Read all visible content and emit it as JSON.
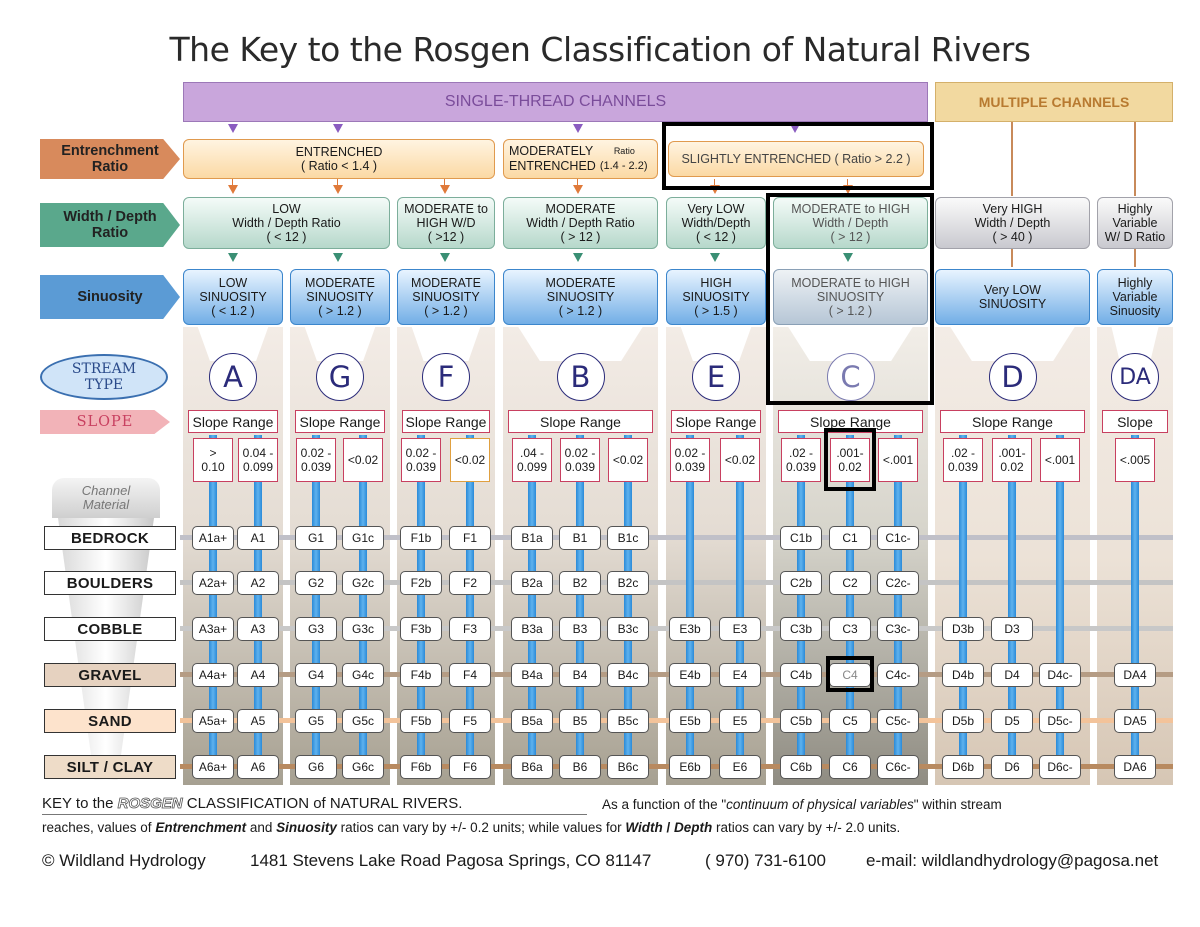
{
  "title": "The Key to the Rosgen Classification of Natural Rivers",
  "headers": {
    "single": "SINGLE-THREAD  CHANNELS",
    "multiple": "MULTIPLE  CHANNELS"
  },
  "row_labels": {
    "entrenchment": "Entrenchment\nRatio",
    "width_depth": "Width / Depth\nRatio",
    "sinuosity": "Sinuosity",
    "stream_type": "STREAM\nTYPE",
    "slope": "SLOPE",
    "channel_material": "Channel\nMaterial"
  },
  "entrenchment": {
    "entrenched": "ENTRENCHED\n( Ratio  < 1.4 )",
    "moderately": "MODERATELY\nENTRENCHED",
    "moderately_ratio_label": "Ratio",
    "moderately_ratio": "(1.4 - 2.2)",
    "slightly": "SLIGHTLY  ENTRENCHED ( Ratio > 2.2 )"
  },
  "width_depth": {
    "a_g": "LOW\nWidth / Depth Ratio\n( < 12 )",
    "f": "MODERATE to\nHIGH   W/D\n( >12 )",
    "b": "MODERATE\nWidth / Depth Ratio\n( > 12 )",
    "e": "Very LOW\nWidth/Depth\n( < 12 )",
    "c": "MODERATE to HIGH\nWidth / Depth\n( > 12 )",
    "d": "Very HIGH\nWidth / Depth\n( > 40 )",
    "da": "Highly\nVariable\nW/ D Ratio"
  },
  "sinuosity": {
    "a": "LOW\nSINUOSITY\n( < 1.2 )",
    "g": "MODERATE\nSINUOSITY\n( > 1.2 )",
    "f": "MODERATE\nSINUOSITY\n( > 1.2 )",
    "b": "MODERATE\nSINUOSITY\n( > 1.2 )",
    "e": "HIGH\nSINUOSITY\n( > 1.5 )",
    "c": "MODERATE to HIGH\nSINUOSITY\n( > 1.2 )",
    "d": "Very LOW\nSINUOSITY",
    "da": "Highly\nVariable\nSinuosity"
  },
  "stream_types": [
    "A",
    "G",
    "F",
    "B",
    "E",
    "C",
    "D",
    "DA"
  ],
  "slope_range": {
    "a": "Slope Range",
    "g": "Slope Range",
    "f": "Slope Range",
    "b": "Slope  Range",
    "e": "Slope Range",
    "c": "Slope  Range",
    "d": "Slope  Range",
    "da": "Slope"
  },
  "slopes": [
    "> \n0.10",
    "0.04 -\n0.099",
    "0.02 -\n0.039",
    "<0.02",
    "0.02 -\n0.039",
    "<0.02",
    ".04 -\n0.099",
    "0.02 -\n0.039",
    "<0.02",
    "0.02 -\n0.039",
    "<0.02",
    ".02 -\n0.039",
    ".001-\n0.02",
    "<.001",
    ".02 -\n0.039",
    ".001-\n0.02",
    "<.001",
    "<.005"
  ],
  "materials": [
    "BEDROCK",
    "BOULDERS",
    "COBBLE",
    "GRAVEL",
    "SAND",
    "SILT / CLAY"
  ],
  "cells": [
    [
      "A1a+",
      "A1",
      "G1",
      "G1c",
      "F1b",
      "F1",
      "B1a",
      "B1",
      "B1c",
      "",
      "",
      "C1b",
      "C1",
      "C1c-",
      "",
      "",
      "",
      ""
    ],
    [
      "A2a+",
      "A2",
      "G2",
      "G2c",
      "F2b",
      "F2",
      "B2a",
      "B2",
      "B2c",
      "",
      "",
      "C2b",
      "C2",
      "C2c-",
      "",
      "",
      "",
      ""
    ],
    [
      "A3a+",
      "A3",
      "G3",
      "G3c",
      "F3b",
      "F3",
      "B3a",
      "B3",
      "B3c",
      "E3b",
      "E3",
      "C3b",
      "C3",
      "C3c-",
      "D3b",
      "D3",
      "",
      ""
    ],
    [
      "A4a+",
      "A4",
      "G4",
      "G4c",
      "F4b",
      "F4",
      "B4a",
      "B4",
      "B4c",
      "E4b",
      "E4",
      "C4b",
      "C4",
      "C4c-",
      "D4b",
      "D4",
      "D4c-",
      "DA4"
    ],
    [
      "A5a+",
      "A5",
      "G5",
      "G5c",
      "F5b",
      "F5",
      "B5a",
      "B5",
      "B5c",
      "E5b",
      "E5",
      "C5b",
      "C5",
      "C5c-",
      "D5b",
      "D5",
      "D5c-",
      "DA5"
    ],
    [
      "A6a+",
      "A6",
      "G6",
      "G6c",
      "F6b",
      "F6",
      "B6a",
      "B6",
      "B6c",
      "E6b",
      "E6",
      "C6b",
      "C6",
      "C6c-",
      "D6b",
      "D6",
      "D6c-",
      "DA6"
    ]
  ],
  "footer": {
    "key_prefix": "KEY to the ",
    "key_rosgen": "ROSGEN",
    "key_suffix": "  CLASSIFICATION of NATURAL RIVERS.",
    "note_a": "As a function of the  \"",
    "note_italic": "continuum of physical variables",
    "note_b": "\"  within stream",
    "line2_a": "reaches, values of ",
    "entrenchment": "Entrenchment",
    "and": " and ",
    "sinuosity": "Sinuosity",
    "line2_b": "  ratios can vary by +/- 0.2 units; while values for ",
    "width": "Width",
    "slash": " / ",
    "depth": "Depth",
    "line2_c": "  ratios can vary by +/- 2.0 units.",
    "copyright": "© Wildland Hydrology",
    "address": "1481 Stevens Lake Road Pagosa Springs, CO 81147",
    "phone": "( 970) 731-6100",
    "email": "e-mail: wildlandhydrology@pagosa.net"
  },
  "colors": {
    "single_header": "#c9a6dc",
    "multiple_header": "#f2d9a0",
    "entrenchment_label": "#d88a5c",
    "width_depth_label": "#5aa88c",
    "sinuosity_label": "#5b9bd5",
    "stream_type_label": "#3a6fb0",
    "slope_label": "#e0707a",
    "highlight": "#000000"
  }
}
